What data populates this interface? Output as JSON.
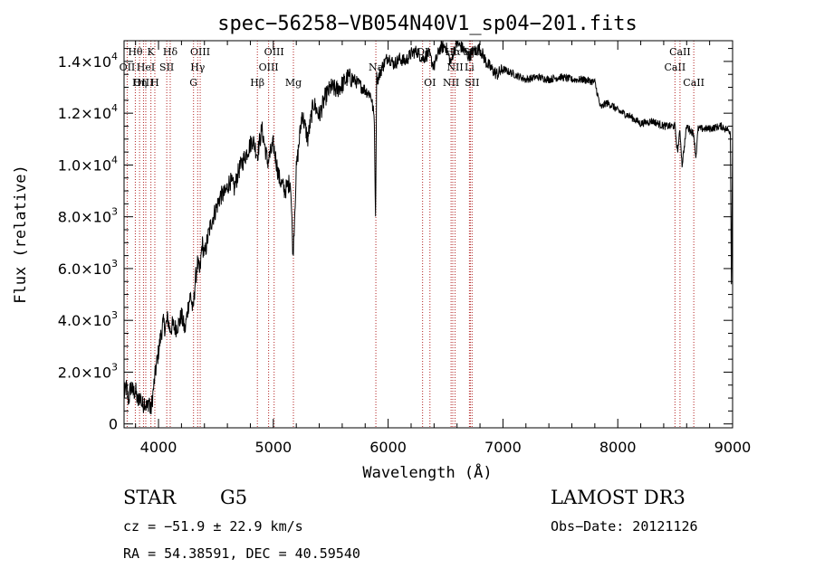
{
  "chart_data": {
    "type": "line",
    "title": "spec−56258−VB054N40V1_sp04−201.fits",
    "xlabel": "Wavelength (Å)",
    "ylabel": "Flux (relative)",
    "xlim": [
      3700,
      9000
    ],
    "ylim": [
      -150,
      14800
    ],
    "x_ticks": [
      {
        "value": 4000,
        "label": "4000"
      },
      {
        "value": 5000,
        "label": "5000"
      },
      {
        "value": 6000,
        "label": "6000"
      },
      {
        "value": 7000,
        "label": "7000"
      },
      {
        "value": 8000,
        "label": "8000"
      },
      {
        "value": 9000,
        "label": "9000"
      }
    ],
    "y_ticks": [
      {
        "value": 0,
        "mant": "0",
        "exp": ""
      },
      {
        "value": 2000,
        "mant": "2.0×10",
        "exp": "3"
      },
      {
        "value": 4000,
        "mant": "4.0×10",
        "exp": "3"
      },
      {
        "value": 6000,
        "mant": "6.0×10",
        "exp": "3"
      },
      {
        "value": 8000,
        "mant": "8.0×10",
        "exp": "3"
      },
      {
        "value": 10000,
        "mant": "1.0×10",
        "exp": "4"
      },
      {
        "value": 12000,
        "mant": "1.2×10",
        "exp": "4"
      },
      {
        "value": 14000,
        "mant": "1.4×10",
        "exp": "4"
      }
    ],
    "spectrum": {
      "x": [
        3700,
        3720,
        3740,
        3760,
        3780,
        3800,
        3820,
        3840,
        3860,
        3880,
        3900,
        3920,
        3930,
        3945,
        3960,
        3968,
        3980,
        4000,
        4020,
        4040,
        4060,
        4080,
        4100,
        4120,
        4150,
        4180,
        4200,
        4230,
        4260,
        4280,
        4300,
        4320,
        4340,
        4360,
        4380,
        4400,
        4430,
        4460,
        4500,
        4540,
        4580,
        4620,
        4660,
        4700,
        4740,
        4780,
        4820,
        4861,
        4900,
        4950,
        5000,
        5050,
        5100,
        5150,
        5172,
        5200,
        5250,
        5300,
        5350,
        5400,
        5450,
        5500,
        5550,
        5600,
        5650,
        5700,
        5750,
        5800,
        5850,
        5880,
        5890,
        5895,
        5900,
        5910,
        5950,
        6000,
        6050,
        6100,
        6150,
        6200,
        6250,
        6300,
        6350,
        6400,
        6450,
        6500,
        6550,
        6563,
        6600,
        6650,
        6700,
        6750,
        6800,
        6850,
        6900,
        6950,
        7000,
        7100,
        7200,
        7300,
        7400,
        7500,
        7600,
        7700,
        7800,
        7850,
        7900,
        7950,
        8000,
        8100,
        8200,
        8300,
        8400,
        8498,
        8520,
        8542,
        8560,
        8600,
        8662,
        8680,
        8700,
        8800,
        8900,
        8980,
        8990,
        9000
      ],
      "y": [
        1100,
        1400,
        900,
        1500,
        1200,
        1300,
        800,
        1100,
        700,
        900,
        600,
        1000,
        400,
        900,
        1500,
        1800,
        2200,
        2800,
        3400,
        3900,
        3700,
        4100,
        3600,
        3800,
        3700,
        3900,
        4200,
        3600,
        4600,
        5000,
        4300,
        5500,
        6200,
        5800,
        7000,
        6500,
        7200,
        7800,
        8300,
        8800,
        8900,
        9400,
        9100,
        9800,
        10200,
        10600,
        11000,
        10400,
        11400,
        10100,
        10800,
        9500,
        9000,
        9400,
        6500,
        9800,
        12000,
        11000,
        12400,
        11900,
        12600,
        13000,
        12900,
        13100,
        13400,
        13300,
        13100,
        12900,
        12700,
        11800,
        7800,
        10500,
        13400,
        13300,
        13800,
        14200,
        13900,
        14100,
        14000,
        14300,
        14400,
        14100,
        14300,
        13800,
        14500,
        14600,
        13900,
        14300,
        14700,
        14500,
        14200,
        14400,
        14500,
        14000,
        13700,
        13500,
        13700,
        13500,
        13300,
        13400,
        13300,
        13400,
        13300,
        13300,
        13200,
        12200,
        12400,
        12300,
        12100,
        11900,
        11600,
        11700,
        11500,
        11500,
        10500,
        11300,
        10000,
        11500,
        11200,
        10300,
        11400,
        11400,
        11500,
        11300,
        5400,
        11200
      ]
    },
    "lines": [
      {
        "label": "Hθ",
        "wl": 3798,
        "row": 1
      },
      {
        "label": "OII",
        "wl": 3727,
        "row": 2
      },
      {
        "label": "OIII",
        "wl": 3869,
        "row": 3
      },
      {
        "label": "HeI",
        "wl": 3889,
        "row": 2
      },
      {
        "label": "Hη",
        "wl": 3835,
        "row": 3
      },
      {
        "label": "K",
        "wl": 3934,
        "row": 1
      },
      {
        "label": "SII",
        "wl": 4072,
        "row": 2
      },
      {
        "label": "H",
        "wl": 3968,
        "row": 3
      },
      {
        "label": "Hδ",
        "wl": 4102,
        "row": 1
      },
      {
        "label": "OIII",
        "wl": 4363,
        "row": 1
      },
      {
        "label": "Hγ",
        "wl": 4341,
        "row": 2
      },
      {
        "label": "G",
        "wl": 4305,
        "row": 3
      },
      {
        "label": "Hβ",
        "wl": 4861,
        "row": 3
      },
      {
        "label": "OIII",
        "wl": 4959,
        "row": 2
      },
      {
        "label": "OIII",
        "wl": 5007,
        "row": 1
      },
      {
        "label": "Mg",
        "wl": 5175,
        "row": 3
      },
      {
        "label": "Na",
        "wl": 5893,
        "row": 2
      },
      {
        "label": "OI",
        "wl": 6300,
        "row": 1
      },
      {
        "label": "OI",
        "wl": 6364,
        "row": 3
      },
      {
        "label": "NII",
        "wl": 6548,
        "row": 3
      },
      {
        "label": "Hα",
        "wl": 6563,
        "row": 1
      },
      {
        "label": "NII",
        "wl": 6583,
        "row": 2
      },
      {
        "label": "Li",
        "wl": 6708,
        "row": 2
      },
      {
        "label": "SII",
        "wl": 6716,
        "row": 1
      },
      {
        "label": "SII",
        "wl": 6731,
        "row": 3
      },
      {
        "label": "CaII",
        "wl": 8498,
        "row": 2
      },
      {
        "label": "CaII",
        "wl": 8542,
        "row": 1
      },
      {
        "label": "CaII",
        "wl": 8662,
        "row": 3
      }
    ],
    "colors": {
      "spectrum": "#000000",
      "lines": "#b22222",
      "axes": "#000000"
    }
  },
  "info": {
    "class": "STAR",
    "subclass": "G5",
    "survey": "LAMOST DR3",
    "cz": "cz = −51.9 ± 22.9 km/s",
    "obs_date": "Obs−Date: 20121126",
    "coords": "RA =  54.38591, DEC =  40.59540"
  }
}
